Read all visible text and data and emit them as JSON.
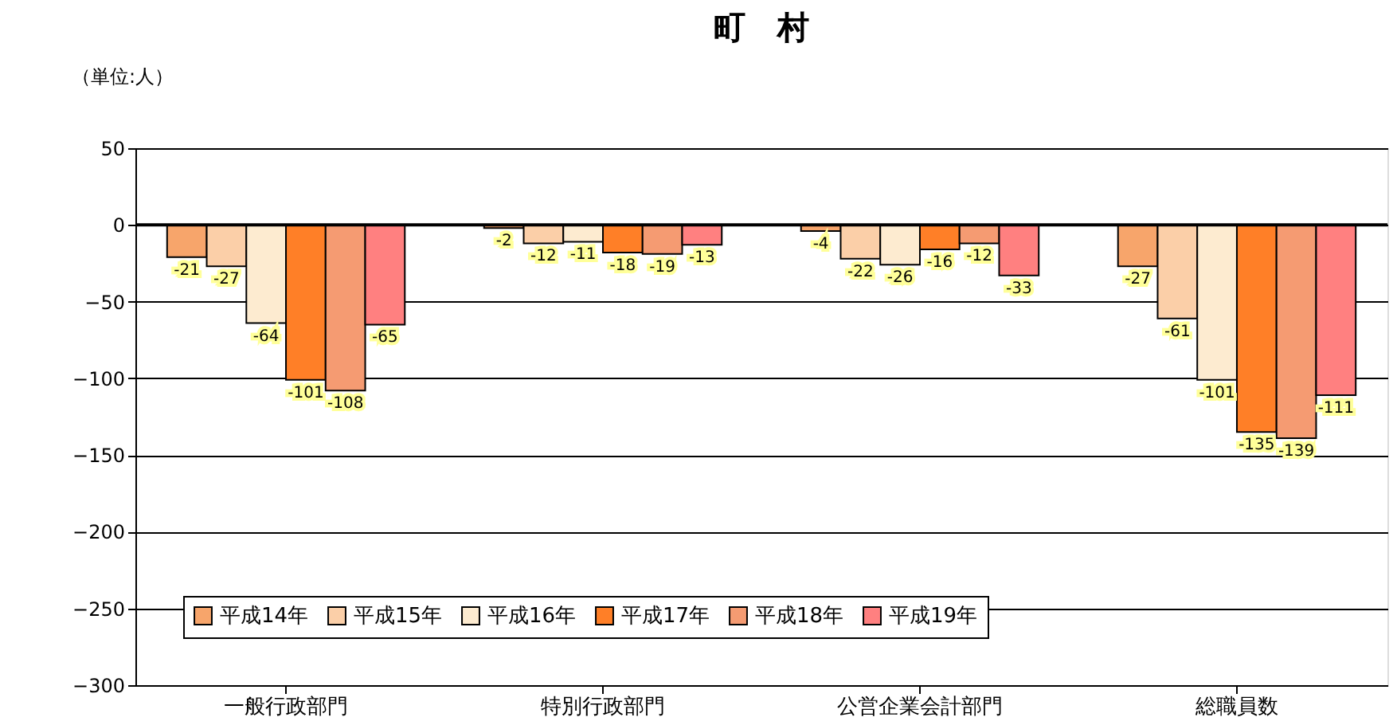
{
  "chart_data": {
    "type": "bar",
    "title": "町　村",
    "annotations": [
      "（単位:人）"
    ],
    "categories": [
      "一般行政部門",
      "特別行政部門",
      "公営企業会計部門",
      "総職員数"
    ],
    "series": [
      {
        "name": "平成14年",
        "color": "#f7a56b",
        "values": [
          -21,
          -2,
          -4,
          -27
        ]
      },
      {
        "name": "平成15年",
        "color": "#fbcfa8",
        "values": [
          -27,
          -12,
          -22,
          -61
        ]
      },
      {
        "name": "平成16年",
        "color": "#fdebd0",
        "values": [
          -64,
          -11,
          -26,
          -101
        ]
      },
      {
        "name": "平成17年",
        "color": "#ff7f27",
        "values": [
          -101,
          -18,
          -16,
          -135
        ]
      },
      {
        "name": "平成18年",
        "color": "#f59b72",
        "values": [
          -108,
          -19,
          -12,
          -139
        ]
      },
      {
        "name": "平成19年",
        "color": "#ff8080",
        "values": [
          -65,
          -13,
          -33,
          -111
        ]
      }
    ],
    "ylim": [
      -300,
      50
    ],
    "yticks": [
      -300,
      -250,
      -200,
      -150,
      -100,
      -50,
      0,
      50
    ],
    "ref_lines": [
      {
        "axis": "y",
        "value": 0,
        "label": null
      }
    ],
    "grid": "y",
    "legend": "bottom left",
    "data_labels": true
  }
}
